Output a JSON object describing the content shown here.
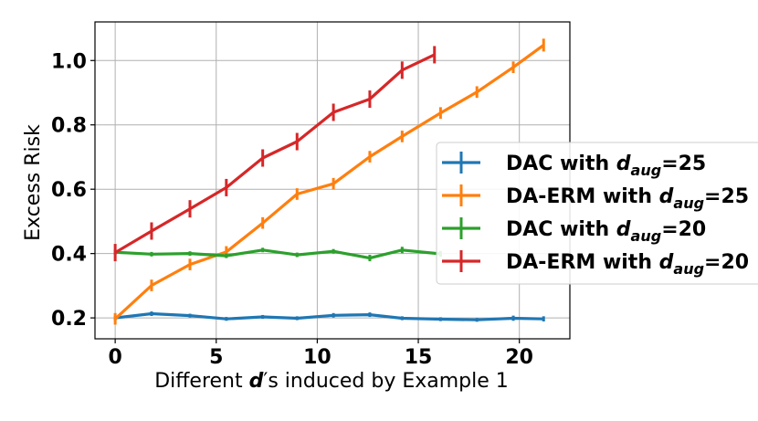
{
  "chart_data": {
    "type": "line",
    "xlabel_prefix": "Different ",
    "xlabel_var": "d",
    "xlabel_suffix": "′s induced by Example 1",
    "ylabel": "Excess Risk",
    "xlim": [
      -1,
      22.5
    ],
    "ylim": [
      0.135,
      1.12
    ],
    "xticks": [
      0,
      5,
      10,
      15,
      20
    ],
    "xtick_labels": [
      "0",
      "5",
      "10",
      "15",
      "20"
    ],
    "yticks": [
      0.2,
      0.4,
      0.6,
      0.8,
      1.0
    ],
    "ytick_labels": [
      "0.2",
      "0.4",
      "0.6",
      "0.8",
      "1.0"
    ],
    "grid": true,
    "legend_position": "right",
    "series": [
      {
        "name_prefix": "DAC with ",
        "name_var": "d",
        "name_sub": "aug",
        "name_suffix": "=25",
        "color": "#1f77b4",
        "x": [
          0,
          1.8,
          3.7,
          5.5,
          7.3,
          9.0,
          10.8,
          12.6,
          14.2,
          16.1,
          17.9,
          19.7,
          21.2
        ],
        "y": [
          0.2,
          0.213,
          0.207,
          0.197,
          0.203,
          0.199,
          0.208,
          0.21,
          0.199,
          0.196,
          0.194,
          0.199,
          0.197
        ],
        "err": [
          0.007,
          0.007,
          0.006,
          0.006,
          0.006,
          0.006,
          0.007,
          0.007,
          0.006,
          0.006,
          0.006,
          0.008,
          0.008
        ]
      },
      {
        "name_prefix": "DA-ERM with ",
        "name_var": "d",
        "name_sub": "aug",
        "name_suffix": "=25",
        "color": "#ff7f0e",
        "x": [
          0,
          1.8,
          3.7,
          5.5,
          7.3,
          9.0,
          10.8,
          12.6,
          14.2,
          16.1,
          17.9,
          19.7,
          21.2
        ],
        "y": [
          0.197,
          0.301,
          0.366,
          0.405,
          0.495,
          0.585,
          0.617,
          0.701,
          0.764,
          0.837,
          0.902,
          0.979,
          1.048
        ],
        "err": [
          0.018,
          0.018,
          0.018,
          0.018,
          0.018,
          0.018,
          0.018,
          0.018,
          0.018,
          0.018,
          0.018,
          0.018,
          0.02
        ]
      },
      {
        "name_prefix": "DAC with ",
        "name_var": "d",
        "name_sub": "aug",
        "name_suffix": "=20",
        "color": "#2ca02c",
        "x": [
          0,
          1.8,
          3.7,
          5.5,
          7.3,
          9.0,
          10.8,
          12.6,
          14.2,
          16.1
        ],
        "y": [
          0.404,
          0.398,
          0.4,
          0.393,
          0.411,
          0.396,
          0.407,
          0.386,
          0.411,
          0.399
        ],
        "err": [
          0.008,
          0.007,
          0.007,
          0.007,
          0.007,
          0.007,
          0.007,
          0.01,
          0.01,
          0.009
        ]
      },
      {
        "name_prefix": "DA-ERM with ",
        "name_var": "d",
        "name_sub": "aug",
        "name_suffix": "=20",
        "color": "#d62728",
        "x": [
          0,
          1.8,
          3.7,
          5.5,
          7.3,
          9.0,
          10.8,
          12.6,
          14.2,
          15.8
        ],
        "y": [
          0.403,
          0.47,
          0.539,
          0.605,
          0.697,
          0.748,
          0.839,
          0.88,
          0.97,
          1.018
        ],
        "err": [
          0.027,
          0.027,
          0.027,
          0.027,
          0.027,
          0.027,
          0.027,
          0.027,
          0.027,
          0.027
        ]
      }
    ]
  }
}
